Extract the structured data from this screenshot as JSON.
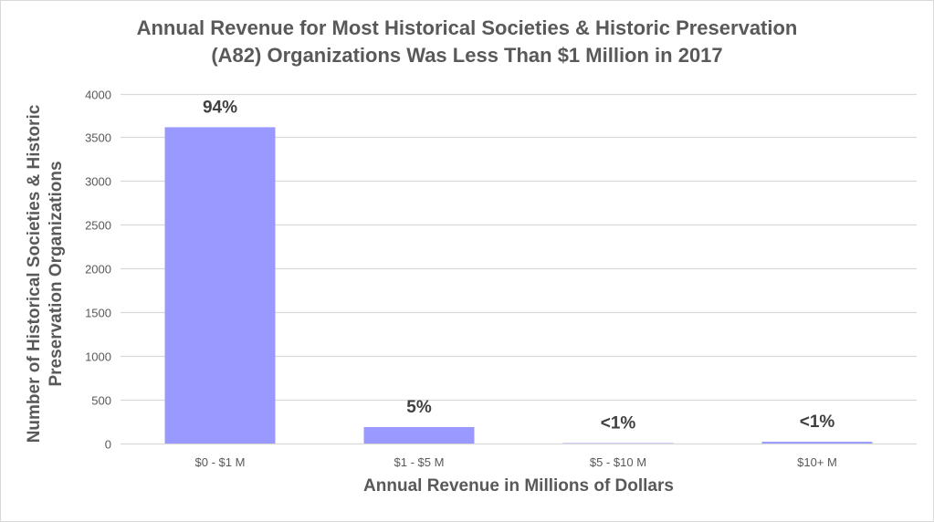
{
  "chart_data": {
    "type": "bar",
    "title_lines": [
      "Annual Revenue for Most Historical Societies & Historic Preservation",
      "(A82) Organizations Was Less Than $1 Million in 2017"
    ],
    "xlabel": "Annual Revenue in Millions of Dollars",
    "ylabel_lines": [
      "Number of Historical Societies & Historic",
      "Preservation Organizations"
    ],
    "categories": [
      "$0 - $1 M",
      "$1 - $5 M",
      "$5 - $10 M",
      "$10+ M"
    ],
    "values": [
      3615,
      188,
      5,
      20
    ],
    "data_labels": [
      "94%",
      "5%",
      "<1%",
      "<1%"
    ],
    "ylim": [
      0,
      4000
    ],
    "yticks": [
      0,
      500,
      1000,
      1500,
      2000,
      2500,
      3000,
      3500,
      4000
    ],
    "grid": true,
    "legend": "none",
    "bar_color": "#9999ff",
    "grid_color": "#d9d9d9",
    "text_color": "#595959",
    "label_color": "#404040"
  }
}
